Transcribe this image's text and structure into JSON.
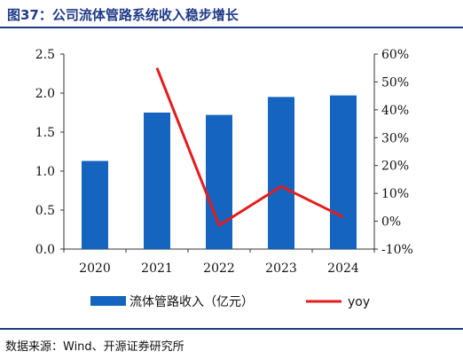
{
  "title": "图37：公司流体管路系统收入稳步增长",
  "source": "数据来源：Wind、开源证券研究所",
  "colors": {
    "bar": "#1565c0",
    "line": "#e31c1c",
    "accent": "#1f3b87"
  },
  "chart_data": {
    "type": "bar",
    "categories": [
      "2020",
      "2021",
      "2022",
      "2023",
      "2024"
    ],
    "series": [
      {
        "name": "流体管路收入（亿元）",
        "type": "bar",
        "axis": "left",
        "values": [
          1.13,
          1.75,
          1.72,
          1.95,
          1.97
        ]
      },
      {
        "name": "yoy",
        "type": "line",
        "axis": "right",
        "values": [
          null,
          0.55,
          -0.015,
          0.125,
          0.015
        ]
      }
    ],
    "y_left": {
      "range": [
        0,
        2.5
      ],
      "ticks": [
        "0.0",
        "0.5",
        "1.0",
        "1.5",
        "2.0",
        "2.5"
      ]
    },
    "y_right": {
      "range": [
        -0.1,
        0.6
      ],
      "ticks": [
        "-10%",
        "0%",
        "10%",
        "20%",
        "30%",
        "40%",
        "50%",
        "60%"
      ]
    },
    "legend": "bottom",
    "grid": false
  }
}
